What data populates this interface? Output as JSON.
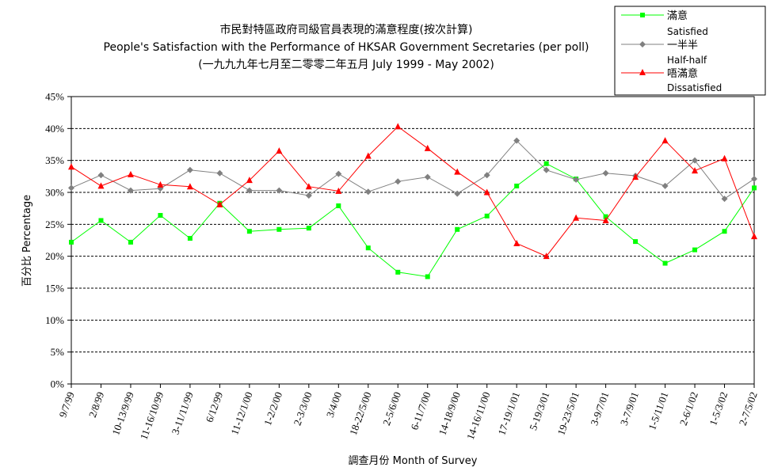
{
  "chart_data": {
    "type": "line",
    "title": [
      "市民對特區政府司級官員表現的滿意程度(按次計算)",
      "People's Satisfaction with the Performance of HKSAR Government Secretaries (per poll)",
      "(一九九九年七月至二零零二年五月 July 1999 - May 2002)"
    ],
    "xlabel": "調查月份 Month of Survey",
    "ylabel": "百分比 Percentage",
    "ylim": [
      0,
      45
    ],
    "yticks": [
      0,
      5,
      10,
      15,
      20,
      25,
      30,
      35,
      40,
      45
    ],
    "ytick_labels": [
      "0%",
      "5%",
      "10%",
      "15%",
      "20%",
      "25%",
      "30%",
      "35%",
      "40%",
      "45%"
    ],
    "grid": "horizontal dashed",
    "legend_position": "top-right",
    "categories": [
      "9/7/99",
      "2/8/99",
      "10-13/9/99",
      "11-16/10/99",
      "3-11/11/99",
      "6/12/99",
      "11-12/1/00",
      "1-2/2/00",
      "2-3/3/00",
      "3/4/00",
      "18-22/5/00",
      "2-5/6/00",
      "6-11/7/00",
      "14-18/9/00",
      "14-16/11/00",
      "17-19/1/01",
      "5-19/3/01",
      "19-23/5/01",
      "3-9/7/01",
      "3-7/9/01",
      "1-5/11/01",
      "2-6/1/02",
      "1-5/3/02",
      "2-7/5/02"
    ],
    "series": [
      {
        "name": "滿意",
        "name_en": "Satisfied",
        "color": "#00ff00",
        "marker": "square",
        "values": [
          22.2,
          25.6,
          22.2,
          26.4,
          22.8,
          28.3,
          23.9,
          24.2,
          24.4,
          27.9,
          21.3,
          17.5,
          16.8,
          24.2,
          26.3,
          31.0,
          34.5,
          32.1,
          26.2,
          22.3,
          18.9,
          21.0,
          23.9,
          30.7
        ]
      },
      {
        "name": "一半半",
        "name_en": "Half-half",
        "color": "#808080",
        "marker": "diamond",
        "values": [
          30.7,
          32.7,
          30.3,
          30.6,
          33.5,
          33.0,
          30.3,
          30.3,
          29.5,
          32.9,
          30.1,
          31.7,
          32.4,
          29.8,
          32.7,
          38.1,
          33.5,
          32.0,
          33.0,
          32.6,
          31.0,
          35.0,
          29.0,
          32.1
        ]
      },
      {
        "name": "唔滿意",
        "name_en": "Dissatisfied",
        "color": "#ff0000",
        "marker": "triangle",
        "values": [
          34.0,
          31.0,
          32.8,
          31.2,
          30.9,
          28.1,
          31.9,
          36.5,
          30.9,
          30.2,
          35.7,
          40.3,
          36.9,
          33.2,
          30.0,
          22.0,
          20.0,
          26.0,
          25.6,
          32.4,
          38.1,
          33.4,
          35.3,
          23.1
        ]
      }
    ]
  }
}
